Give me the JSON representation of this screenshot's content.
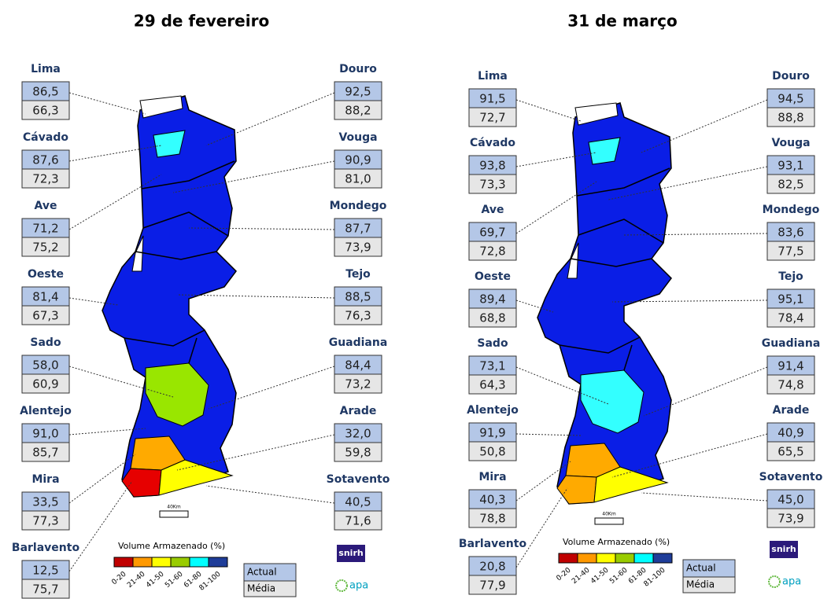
{
  "panels": [
    {
      "title": "29 de fevereiro",
      "basins": [
        {
          "name": "Lima",
          "actual": "86,5",
          "media": "66,3"
        },
        {
          "name": "Cávado",
          "actual": "87,6",
          "media": "72,3"
        },
        {
          "name": "Ave",
          "actual": "71,2",
          "media": "75,2"
        },
        {
          "name": "Oeste",
          "actual": "81,4",
          "media": "67,3"
        },
        {
          "name": "Sado",
          "actual": "58,0",
          "media": "60,9"
        },
        {
          "name": "Alentejo",
          "actual": "91,0",
          "media": "85,7"
        },
        {
          "name": "Mira",
          "actual": "33,5",
          "media": "77,3"
        },
        {
          "name": "Barlavento",
          "actual": "12,5",
          "media": "75,7"
        },
        {
          "name": "Douro",
          "actual": "92,5",
          "media": "88,2"
        },
        {
          "name": "Vouga",
          "actual": "90,9",
          "media": "81,0"
        },
        {
          "name": "Mondego",
          "actual": "87,7",
          "media": "73,9"
        },
        {
          "name": "Tejo",
          "actual": "88,5",
          "media": "76,3"
        },
        {
          "name": "Guadiana",
          "actual": "84,4",
          "media": "73,2"
        },
        {
          "name": "Arade",
          "actual": "32,0",
          "media": "59,8"
        },
        {
          "name": "Sotavento",
          "actual": "40,5",
          "media": "71,6"
        }
      ],
      "scale": "40Km",
      "legend": {
        "title": "Volume Armazenado (%)",
        "classes": [
          "0-20",
          "21-40",
          "41-50",
          "51-60",
          "61-80",
          "81-100"
        ],
        "actual": "Actual",
        "media": "Média"
      },
      "logos": [
        "snirh",
        "apa"
      ]
    },
    {
      "title": "31 de março",
      "basins": [
        {
          "name": "Lima",
          "actual": "91,5",
          "media": "72,7"
        },
        {
          "name": "Cávado",
          "actual": "93,8",
          "media": "73,3"
        },
        {
          "name": "Ave",
          "actual": "69,7",
          "media": "72,8"
        },
        {
          "name": "Oeste",
          "actual": "89,4",
          "media": "68,8"
        },
        {
          "name": "Sado",
          "actual": "73,1",
          "media": "64,3"
        },
        {
          "name": "Alentejo",
          "actual": "91,9",
          "media": "50,8"
        },
        {
          "name": "Mira",
          "actual": "40,3",
          "media": "78,8"
        },
        {
          "name": "Barlavento",
          "actual": "20,8",
          "media": "77,9"
        },
        {
          "name": "Douro",
          "actual": "94,5",
          "media": "88,8"
        },
        {
          "name": "Vouga",
          "actual": "93,1",
          "media": "82,5"
        },
        {
          "name": "Mondego",
          "actual": "83,6",
          "media": "77,5"
        },
        {
          "name": "Tejo",
          "actual": "95,1",
          "media": "78,4"
        },
        {
          "name": "Guadiana",
          "actual": "91,4",
          "media": "74,8"
        },
        {
          "name": "Arade",
          "actual": "40,9",
          "media": "65,5"
        },
        {
          "name": "Sotavento",
          "actual": "45,0",
          "media": "73,9"
        }
      ],
      "scale": "40Km",
      "legend": {
        "title": "Volume Armazenado (%)",
        "classes": [
          "0-20",
          "21-40",
          "41-50",
          "51-60",
          "61-80",
          "81-100"
        ],
        "actual": "Actual",
        "media": "Média"
      },
      "logos": [
        "snirh",
        "apa"
      ]
    }
  ]
}
